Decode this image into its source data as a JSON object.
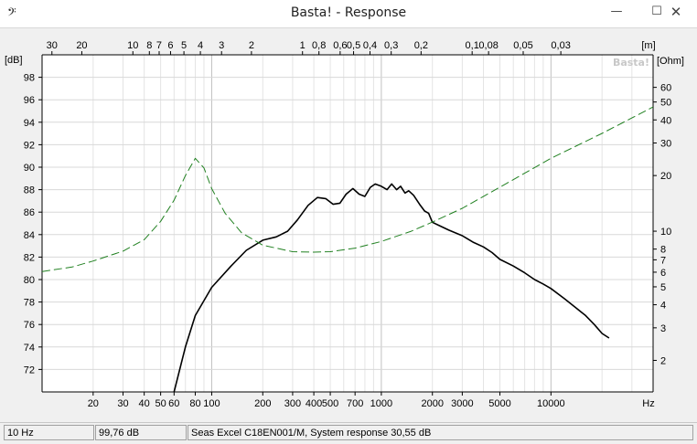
{
  "window": {
    "title": "Basta! - Response",
    "minimize_glyph": "—",
    "maximize_glyph": "☐",
    "close_glyph": "✕",
    "app_icon": "𝄢"
  },
  "statusbar": {
    "frequency": "10 Hz",
    "level": "99,76 dB",
    "description": "Seas Excel C18EN001/M, System response 30,55 dB"
  },
  "chart_data": {
    "type": "line",
    "watermark": "Basta!",
    "x_scale": "log",
    "xlim": [
      10,
      40000
    ],
    "x_unit": "Hz",
    "x_ticks": [
      20,
      30,
      40,
      50,
      60,
      80,
      100,
      200,
      300,
      400,
      500,
      700,
      1000,
      2000,
      3000,
      5000,
      10000
    ],
    "x_tick_labels": [
      "20",
      "30",
      "40",
      "50",
      "60",
      "80",
      "100",
      "200",
      "300",
      "400",
      "500",
      "700",
      "1000",
      "2000",
      "3000",
      "5000",
      "10000"
    ],
    "top_axis_unit": "[m]",
    "top_ticks": [
      {
        "label": "30",
        "hz": 11.43
      },
      {
        "label": "20",
        "hz": 17.15
      },
      {
        "label": "10",
        "hz": 34.3
      },
      {
        "label": "8",
        "hz": 42.9
      },
      {
        "label": "7",
        "hz": 49.0
      },
      {
        "label": "6",
        "hz": 57.2
      },
      {
        "label": "5",
        "hz": 68.6
      },
      {
        "label": "4",
        "hz": 85.75
      },
      {
        "label": "3",
        "hz": 114.3
      },
      {
        "label": "2",
        "hz": 171.5
      },
      {
        "label": "1",
        "hz": 343
      },
      {
        "label": "0,8",
        "hz": 428.75
      },
      {
        "label": "0,6",
        "hz": 571.7
      },
      {
        "label": "0,5",
        "hz": 686
      },
      {
        "label": "0,4",
        "hz": 857.5
      },
      {
        "label": "0,3",
        "hz": 1143.3
      },
      {
        "label": "0,2",
        "hz": 1715
      },
      {
        "label": "0,1",
        "hz": 3430
      },
      {
        "label": "0,08",
        "hz": 4287.5
      },
      {
        "label": "0,05",
        "hz": 6860
      },
      {
        "label": "0,03",
        "hz": 11433
      }
    ],
    "y_left_unit": "[dB]",
    "ylim": [
      70,
      100
    ],
    "y_ticks": [
      72,
      74,
      76,
      78,
      80,
      82,
      84,
      86,
      88,
      90,
      92,
      94,
      96,
      98
    ],
    "y_right_unit": "[Ohm]",
    "y_right_scale": "log",
    "y_right_lim": [
      1.35,
      90
    ],
    "y_right_ticks": [
      2,
      3,
      4,
      5,
      6,
      7,
      8,
      10,
      20,
      30,
      40,
      50,
      60
    ],
    "grid": true,
    "series": [
      {
        "axis": "left",
        "color": "#000000",
        "style": "solid",
        "points": [
          [
            60,
            70
          ],
          [
            70,
            74
          ],
          [
            80,
            76.8
          ],
          [
            100,
            79.3
          ],
          [
            130,
            81.2
          ],
          [
            160,
            82.6
          ],
          [
            200,
            83.5
          ],
          [
            240,
            83.8
          ],
          [
            280,
            84.3
          ],
          [
            320,
            85.3
          ],
          [
            370,
            86.6
          ],
          [
            420,
            87.3
          ],
          [
            470,
            87.2
          ],
          [
            520,
            86.7
          ],
          [
            570,
            86.8
          ],
          [
            620,
            87.6
          ],
          [
            680,
            88.1
          ],
          [
            740,
            87.6
          ],
          [
            800,
            87.4
          ],
          [
            860,
            88.2
          ],
          [
            920,
            88.5
          ],
          [
            1000,
            88.3
          ],
          [
            1080,
            88.0
          ],
          [
            1150,
            88.5
          ],
          [
            1230,
            88.0
          ],
          [
            1300,
            88.3
          ],
          [
            1380,
            87.7
          ],
          [
            1450,
            87.9
          ],
          [
            1550,
            87.5
          ],
          [
            1680,
            86.7
          ],
          [
            1800,
            86.1
          ],
          [
            1900,
            85.9
          ],
          [
            2000,
            85.1
          ],
          [
            2200,
            84.8
          ],
          [
            2500,
            84.4
          ],
          [
            3000,
            83.9
          ],
          [
            3500,
            83.3
          ],
          [
            4000,
            82.9
          ],
          [
            4500,
            82.4
          ],
          [
            5000,
            81.8
          ],
          [
            6000,
            81.2
          ],
          [
            7000,
            80.6
          ],
          [
            8000,
            80.0
          ],
          [
            9000,
            79.6
          ],
          [
            10000,
            79.2
          ],
          [
            12000,
            78.3
          ],
          [
            14000,
            77.5
          ],
          [
            16000,
            76.8
          ],
          [
            18000,
            76.0
          ],
          [
            20000,
            75.2
          ],
          [
            22000,
            74.8
          ]
        ]
      },
      {
        "axis": "right",
        "color": "#208020",
        "style": "dashed",
        "points": [
          [
            10,
            6.05
          ],
          [
            15,
            6.4
          ],
          [
            20,
            6.9
          ],
          [
            30,
            7.8
          ],
          [
            40,
            9.0
          ],
          [
            50,
            11.3
          ],
          [
            60,
            14.7
          ],
          [
            70,
            20.0
          ],
          [
            80,
            24.8
          ],
          [
            90,
            22.0
          ],
          [
            100,
            17.0
          ],
          [
            120,
            12.5
          ],
          [
            150,
            9.8
          ],
          [
            200,
            8.4
          ],
          [
            300,
            7.75
          ],
          [
            400,
            7.7
          ],
          [
            500,
            7.75
          ],
          [
            700,
            8.1
          ],
          [
            1000,
            8.8
          ],
          [
            1500,
            10.0
          ],
          [
            2000,
            11.2
          ],
          [
            3000,
            13.3
          ],
          [
            5000,
            17.3
          ],
          [
            7000,
            20.6
          ],
          [
            10000,
            24.8
          ],
          [
            20000,
            33.8
          ],
          [
            30000,
            41.0
          ],
          [
            40000,
            47.0
          ]
        ]
      }
    ]
  }
}
